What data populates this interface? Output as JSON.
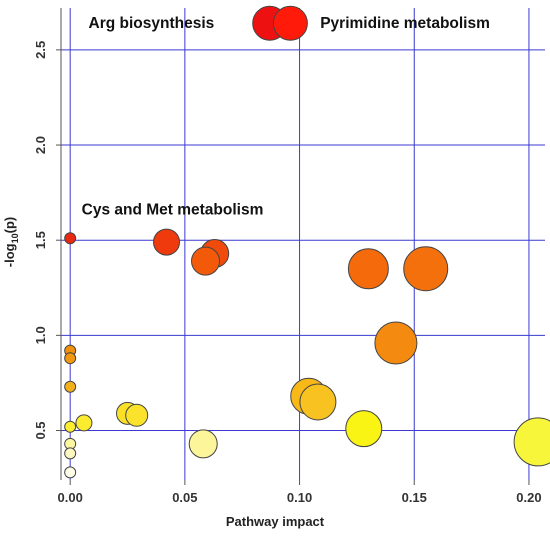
{
  "chart_data": {
    "type": "scatter",
    "xlabel": "Pathway impact",
    "ylabel_main": "-log",
    "ylabel_sub": "10",
    "ylabel_tail": "(p)",
    "xlim": [
      -0.004,
      0.207
    ],
    "ylim": [
      0.24,
      2.72
    ],
    "x_ticks": [
      0.0,
      0.05,
      0.1,
      0.15,
      0.2
    ],
    "x_tick_labels": [
      "0.00",
      "0.05",
      "0.10",
      "0.15",
      "0.20"
    ],
    "y_ticks": [
      0.5,
      1.0,
      1.5,
      2.0,
      2.5
    ],
    "y_tick_labels": [
      "0.5",
      "1.0",
      "1.5",
      "2.0",
      "2.5"
    ],
    "grid": true,
    "grid_color": "#3a3ad0",
    "annotations": [
      {
        "text": "Arg biosynthesis",
        "x": 0.008,
        "y": 2.64
      },
      {
        "text": "Pyrimidine metabolism",
        "x": 0.109,
        "y": 2.64
      },
      {
        "text": "Cys and Met metabolism",
        "x": 0.005,
        "y": 1.66
      }
    ],
    "points": [
      {
        "x": 0.087,
        "y": 2.64,
        "size": 17,
        "color": "#ee1111"
      },
      {
        "x": 0.096,
        "y": 2.64,
        "size": 17,
        "color": "#ff1a0a"
      },
      {
        "x": 0.0,
        "y": 1.51,
        "size": 5.5,
        "color": "#e82810"
      },
      {
        "x": 0.042,
        "y": 1.49,
        "size": 13,
        "color": "#ee3a0c"
      },
      {
        "x": 0.063,
        "y": 1.43,
        "size": 14,
        "color": "#f04a0c"
      },
      {
        "x": 0.059,
        "y": 1.39,
        "size": 14,
        "color": "#f25a0a"
      },
      {
        "x": 0.13,
        "y": 1.35,
        "size": 20,
        "color": "#f56a0a"
      },
      {
        "x": 0.155,
        "y": 1.35,
        "size": 22,
        "color": "#f4700c"
      },
      {
        "x": 0.142,
        "y": 0.96,
        "size": 21,
        "color": "#f48a10"
      },
      {
        "x": 0.0,
        "y": 0.92,
        "size": 5.5,
        "color": "#f0900e"
      },
      {
        "x": 0.0,
        "y": 0.88,
        "size": 5.5,
        "color": "#f29810"
      },
      {
        "x": 0.0,
        "y": 0.73,
        "size": 5.5,
        "color": "#f4b018"
      },
      {
        "x": 0.104,
        "y": 0.68,
        "size": 18,
        "color": "#f7b818"
      },
      {
        "x": 0.108,
        "y": 0.65,
        "size": 18,
        "color": "#f8c220"
      },
      {
        "x": 0.025,
        "y": 0.59,
        "size": 11,
        "color": "#fbe028"
      },
      {
        "x": 0.029,
        "y": 0.58,
        "size": 11,
        "color": "#fbe32c"
      },
      {
        "x": 0.006,
        "y": 0.54,
        "size": 8,
        "color": "#fcec30"
      },
      {
        "x": 0.0,
        "y": 0.52,
        "size": 5.5,
        "color": "#fdef30"
      },
      {
        "x": 0.128,
        "y": 0.51,
        "size": 18,
        "color": "#f9f414"
      },
      {
        "x": 0.204,
        "y": 0.44,
        "size": 24,
        "color": "#f8f63a"
      },
      {
        "x": 0.058,
        "y": 0.43,
        "size": 14,
        "color": "#fcf59a"
      },
      {
        "x": 0.0,
        "y": 0.43,
        "size": 5.5,
        "color": "#fdf7a0"
      },
      {
        "x": 0.0,
        "y": 0.38,
        "size": 5.5,
        "color": "#fdf8c0"
      },
      {
        "x": 0.0,
        "y": 0.28,
        "size": 5.5,
        "color": "#fefbe6"
      }
    ]
  }
}
